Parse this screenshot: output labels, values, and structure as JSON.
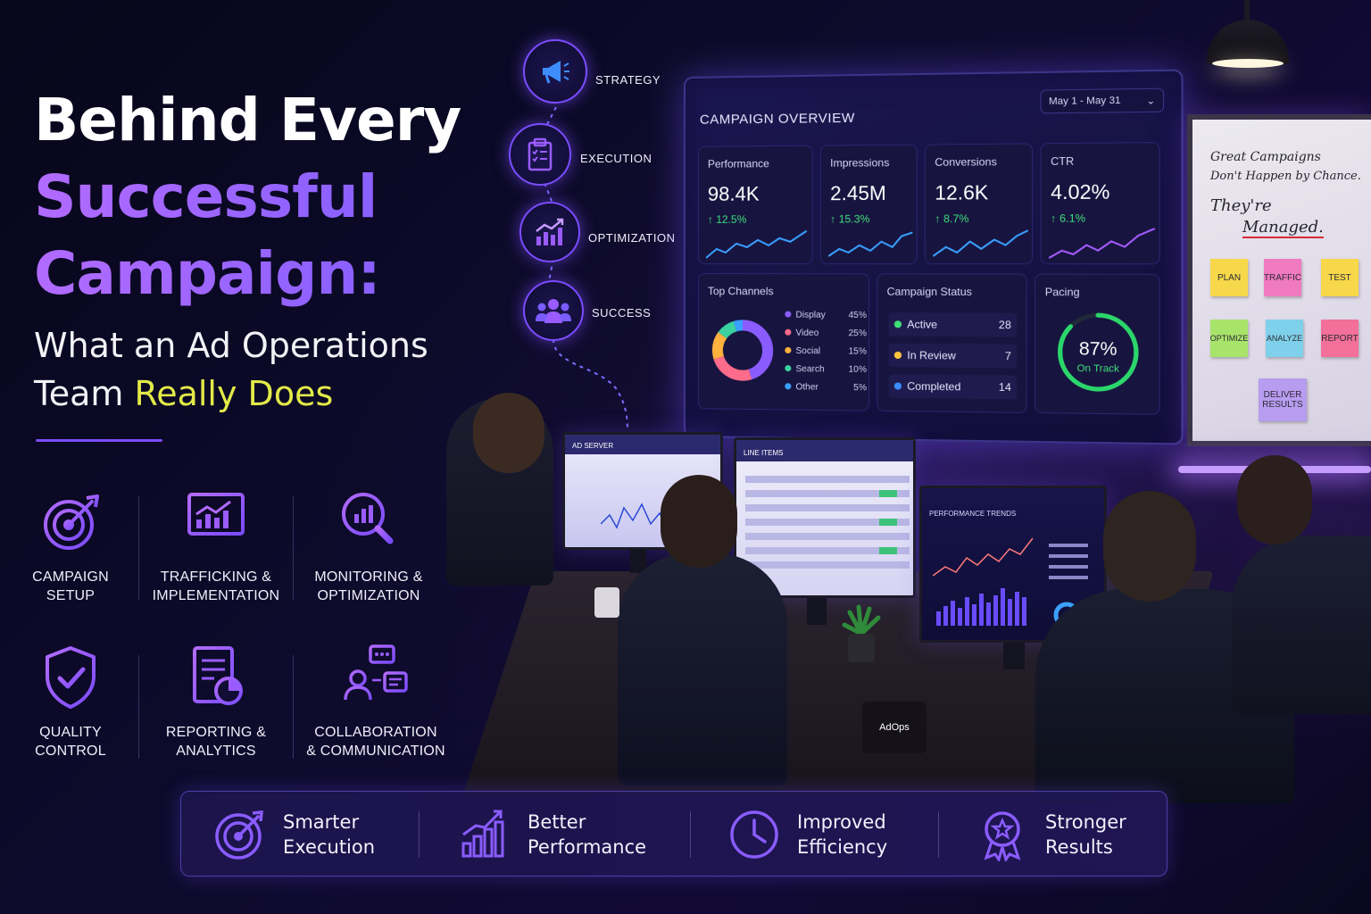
{
  "headline": {
    "line1": "Behind Every",
    "line2": "Successful",
    "line3": "Campaign:",
    "sub_line1": "What an Ad Operations",
    "sub_line2_part1": "Team ",
    "sub_line2_part2": "Really Does"
  },
  "roles": [
    {
      "line1": "CAMPAIGN",
      "line2": "SETUP",
      "icon": "target-icon"
    },
    {
      "line1": "TRAFFICKING &",
      "line2": "IMPLEMENTATION",
      "icon": "monitor-chart-icon"
    },
    {
      "line1": "MONITORING &",
      "line2": "OPTIMIZATION",
      "icon": "magnifier-chart-icon"
    },
    {
      "line1": "QUALITY",
      "line2": "CONTROL",
      "icon": "shield-check-icon"
    },
    {
      "line1": "REPORTING &",
      "line2": "ANALYTICS",
      "icon": "report-icon"
    },
    {
      "line1": "COLLABORATION",
      "line2": "& COMMUNICATION",
      "icon": "team-chat-icon"
    }
  ],
  "timeline": [
    {
      "label": "STRATEGY",
      "icon": "megaphone-icon"
    },
    {
      "label": "EXECUTION",
      "icon": "clipboard-icon"
    },
    {
      "label": "OPTIMIZATION",
      "icon": "growth-chart-icon"
    },
    {
      "label": "SUCCESS",
      "icon": "people-icon"
    }
  ],
  "dashboard": {
    "title": "CAMPAIGN OVERVIEW",
    "date_range": "May 1 - May 31",
    "kpis": [
      {
        "title": "Performance",
        "value": "98.4K",
        "delta": "↑ 12.5%",
        "color": "#3aa0ff"
      },
      {
        "title": "Impressions",
        "value": "2.45M",
        "delta": "↑ 15.3%",
        "color": "#3aa0ff"
      },
      {
        "title": "Conversions",
        "value": "12.6K",
        "delta": "↑ 8.7%",
        "color": "#3aa0ff"
      },
      {
        "title": "CTR",
        "value": "4.02%",
        "delta": "↑ 6.1%",
        "color": "#a45cff"
      }
    ],
    "channels": {
      "title": "Top Channels",
      "items": [
        {
          "name": "Display",
          "pct": "45%",
          "share": 45,
          "color": "#8a5cff"
        },
        {
          "name": "Video",
          "pct": "25%",
          "share": 25,
          "color": "#ff6b8a"
        },
        {
          "name": "Social",
          "pct": "15%",
          "share": 15,
          "color": "#ffb23e"
        },
        {
          "name": "Search",
          "pct": "10%",
          "share": 10,
          "color": "#3ad29f"
        },
        {
          "name": "Other",
          "pct": "5%",
          "share": 5,
          "color": "#3aa0ff"
        }
      ]
    },
    "status": {
      "title": "Campaign Status",
      "items": [
        {
          "name": "Active",
          "count": "28",
          "color": "#3ee07a"
        },
        {
          "name": "In Review",
          "count": "7",
          "color": "#ffc53d"
        },
        {
          "name": "Completed",
          "count": "14",
          "color": "#3a8cff"
        }
      ]
    },
    "pacing": {
      "title": "Pacing",
      "value": "87%",
      "label": "On Track",
      "fraction": 0.87
    }
  },
  "whiteboard": {
    "line1": "Great Campaigns",
    "line2": "Don't Happen by Chance.",
    "line3": "They're",
    "line4": "Managed.",
    "notes": [
      {
        "text": "PLAN",
        "color": "#f7d84a"
      },
      {
        "text": "TRAFFIC",
        "color": "#f07ac0"
      },
      {
        "text": "TEST",
        "color": "#f7d84a"
      },
      {
        "text": "OPTIMIZE",
        "color": "#a8e36a"
      },
      {
        "text": "ANALYZE",
        "color": "#7fd0ea"
      },
      {
        "text": "REPORT",
        "color": "#f2709a"
      },
      {
        "text": "DELIVER RESULTS",
        "color": "#b79cf0"
      }
    ]
  },
  "screens": {
    "ad_server": "AD SERVER",
    "line_items": "LINE ITEMS",
    "performance_trends": "PERFORMANCE TRENDS"
  },
  "mug": "AdOps",
  "benefits": [
    {
      "line1": "Smarter",
      "line2": "Execution",
      "icon": "target-icon"
    },
    {
      "line1": "Better",
      "line2": "Performance",
      "icon": "bar-growth-icon"
    },
    {
      "line1": "Improved",
      "line2": "Efficiency",
      "icon": "clock-icon"
    },
    {
      "line1": "Stronger",
      "line2": "Results",
      "icon": "award-icon"
    }
  ],
  "colors": {
    "accent": "#7b4cff",
    "headline_purple": "#a35cff",
    "highlight_yellow": "#e2ea48",
    "positive": "#3ee07a"
  }
}
